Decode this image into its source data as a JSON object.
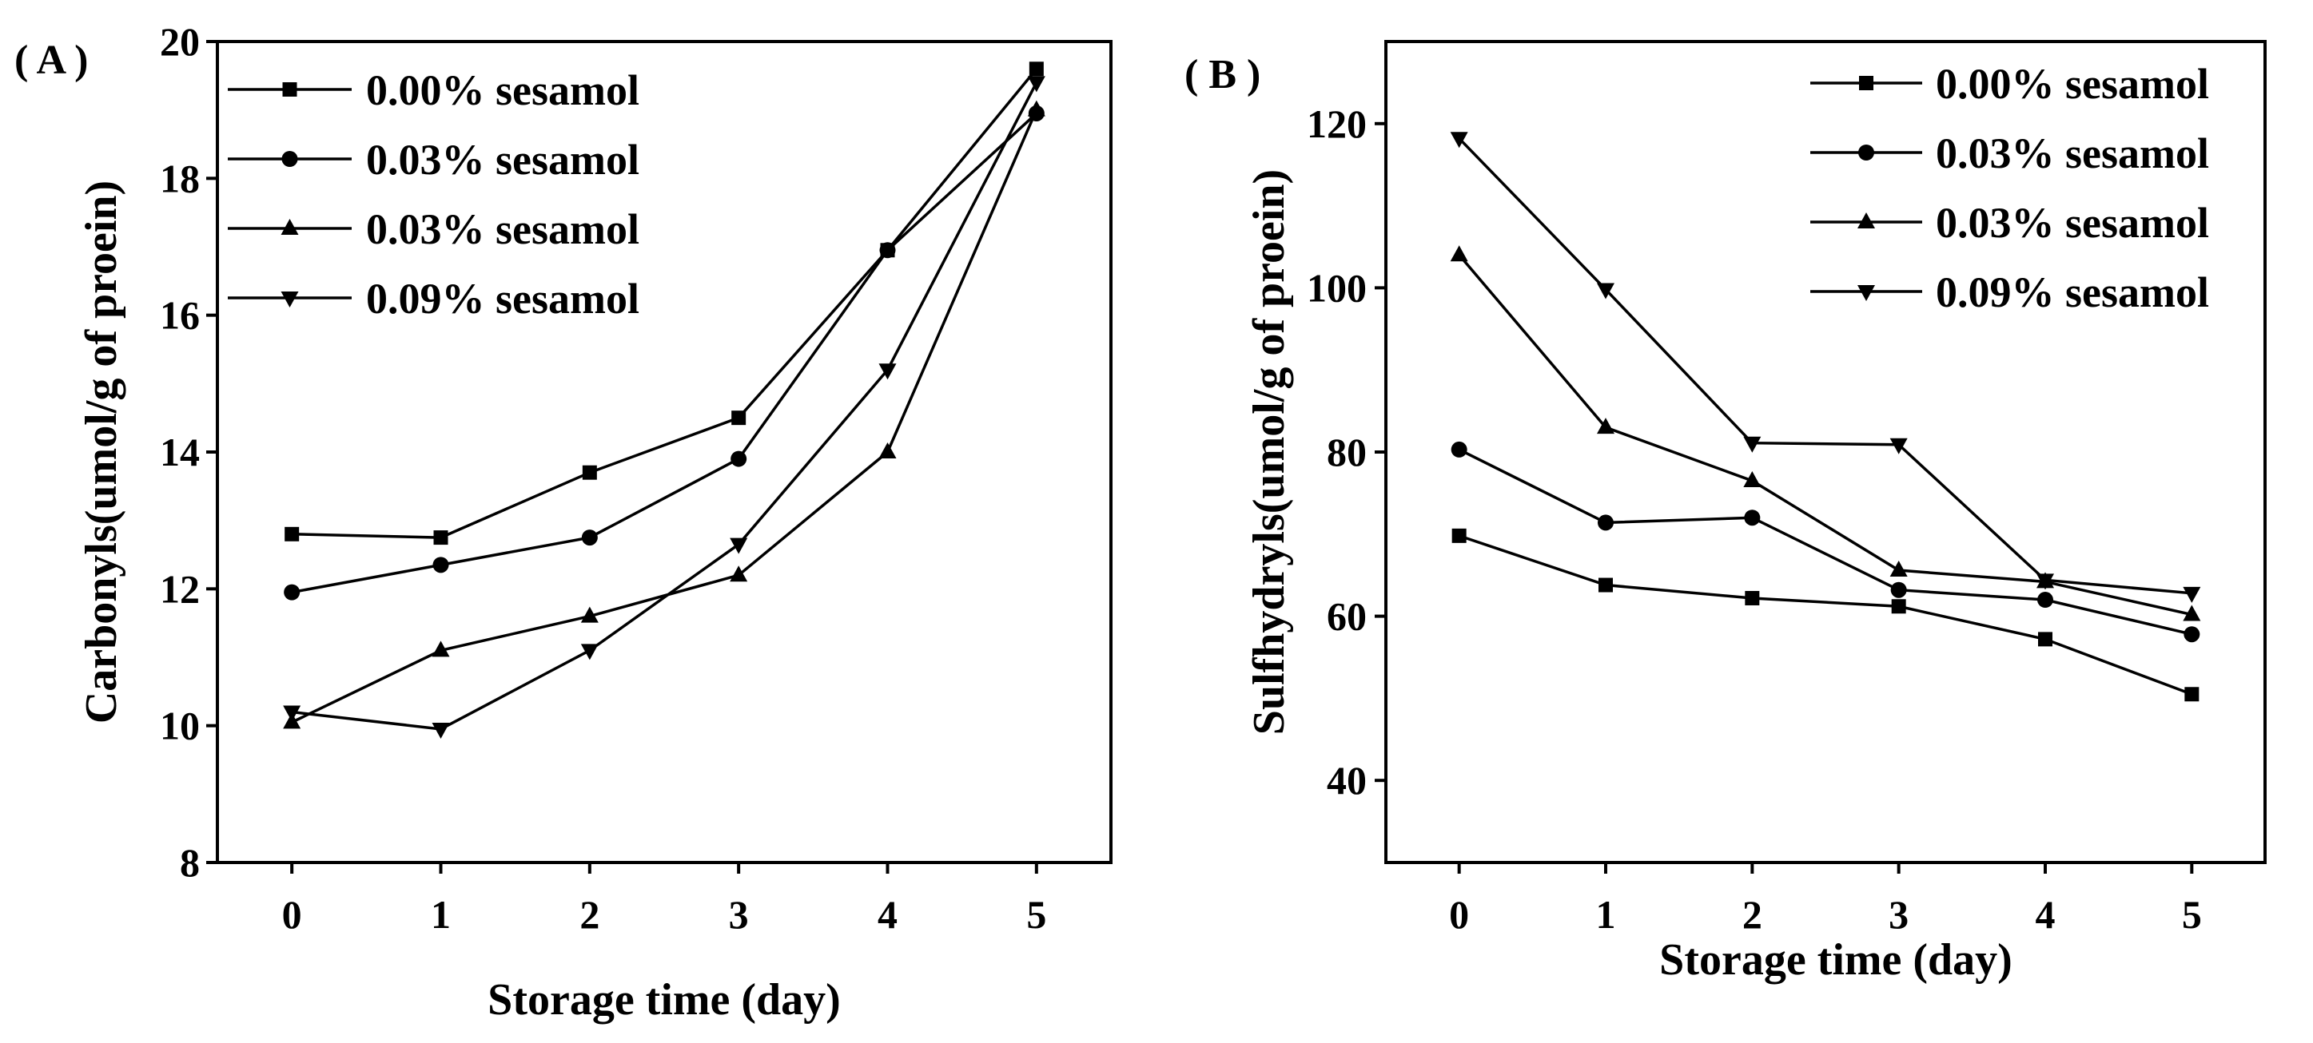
{
  "chart_data": [
    {
      "type": "line",
      "panel_label": "( A )",
      "title": "",
      "xlabel": "Storage time (day)",
      "ylabel": "Carbonyls(umol/g of proein)",
      "x": [
        0,
        1,
        2,
        3,
        4,
        5
      ],
      "xlim": [
        -0.5,
        5.5
      ],
      "ylim": [
        8,
        20
      ],
      "yticks": [
        8,
        10,
        12,
        14,
        16,
        18,
        20
      ],
      "legend_position": "top-left",
      "series": [
        {
          "name": "0.00% sesamol",
          "marker": "square",
          "values": [
            12.8,
            12.75,
            13.7,
            14.5,
            16.95,
            19.6
          ]
        },
        {
          "name": "0.03% sesamol",
          "marker": "circle",
          "values": [
            11.95,
            12.35,
            12.75,
            13.9,
            16.95,
            18.95
          ]
        },
        {
          "name": "0.03% sesamol",
          "marker": "triangle-up",
          "values": [
            10.05,
            11.1,
            11.6,
            12.2,
            14.0,
            19.0
          ]
        },
        {
          "name": "0.09% sesamol",
          "marker": "triangle-down",
          "values": [
            10.2,
            9.95,
            11.1,
            12.65,
            15.2,
            19.4
          ]
        }
      ]
    },
    {
      "type": "line",
      "panel_label": "( B )",
      "title": "",
      "xlabel": "Storage time (day)",
      "ylabel": "Sulfhydryls(umol/g of proein)",
      "x": [
        0,
        1,
        2,
        3,
        4,
        5
      ],
      "xlim": [
        -0.5,
        5.5
      ],
      "ylim": [
        30,
        130
      ],
      "yticks": [
        40,
        60,
        80,
        100,
        120
      ],
      "legend_position": "top-right",
      "series": [
        {
          "name": "0.00% sesamol",
          "marker": "square",
          "values": [
            69.8,
            63.8,
            62.2,
            61.2,
            57.2,
            50.5
          ]
        },
        {
          "name": "0.03% sesamol",
          "marker": "circle",
          "values": [
            80.3,
            71.4,
            72.0,
            63.2,
            62.0,
            57.8
          ]
        },
        {
          "name": "0.03% sesamol",
          "marker": "triangle-up",
          "values": [
            104.0,
            83.0,
            76.5,
            65.6,
            64.2,
            60.2
          ]
        },
        {
          "name": "0.09% sesamol",
          "marker": "triangle-down",
          "values": [
            118.2,
            99.8,
            81.1,
            80.9,
            64.4,
            62.8
          ]
        }
      ]
    }
  ]
}
